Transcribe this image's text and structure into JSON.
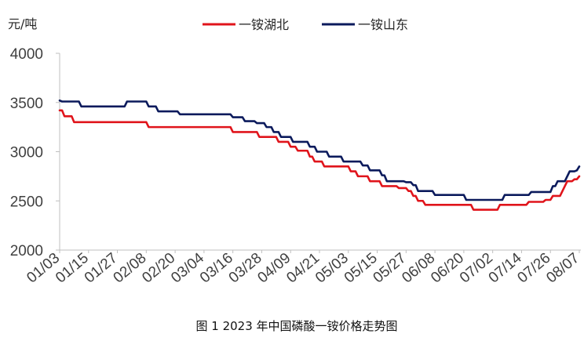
{
  "chart_data": {
    "type": "line",
    "title": "图 1 2023 年中国磷酸一铵价格走势图",
    "ylabel": "元/吨",
    "ylim": [
      2000,
      4000
    ],
    "yticks": [
      2000,
      2500,
      3000,
      3500,
      4000
    ],
    "xlim": [
      "01/03",
      "08/07"
    ],
    "xticks": [
      "01/03",
      "01/15",
      "01/27",
      "02/08",
      "02/20",
      "03/04",
      "03/16",
      "03/28",
      "04/09",
      "04/21",
      "05/03",
      "05/15",
      "05/27",
      "06/08",
      "06/20",
      "07/02",
      "07/14",
      "07/26",
      "08/07"
    ],
    "grid": false,
    "legend_position": "top",
    "series": [
      {
        "name": "一铵湖北",
        "color": "#e0141b",
        "points": [
          [
            "01/03",
            3420
          ],
          [
            "01/05",
            3360
          ],
          [
            "01/09",
            3300
          ],
          [
            "02/09",
            3250
          ],
          [
            "03/16",
            3200
          ],
          [
            "03/27",
            3150
          ],
          [
            "04/04",
            3100
          ],
          [
            "04/09",
            3050
          ],
          [
            "04/12",
            3010
          ],
          [
            "04/17",
            2950
          ],
          [
            "04/19",
            2900
          ],
          [
            "04/23",
            2850
          ],
          [
            "05/04",
            2800
          ],
          [
            "05/07",
            2750
          ],
          [
            "05/12",
            2700
          ],
          [
            "05/17",
            2650
          ],
          [
            "05/24",
            2630
          ],
          [
            "05/28",
            2600
          ],
          [
            "05/30",
            2550
          ],
          [
            "06/01",
            2500
          ],
          [
            "06/04",
            2460
          ],
          [
            "06/24",
            2410
          ],
          [
            "07/05",
            2460
          ],
          [
            "07/17",
            2490
          ],
          [
            "07/24",
            2510
          ],
          [
            "07/27",
            2550
          ],
          [
            "07/31",
            2600
          ],
          [
            "08/01",
            2650
          ],
          [
            "08/02",
            2700
          ],
          [
            "08/05",
            2720
          ],
          [
            "08/07",
            2750
          ]
        ]
      },
      {
        "name": "一铵山东",
        "color": "#0b1a5c",
        "points": [
          [
            "01/03",
            3520
          ],
          [
            "01/04",
            3510
          ],
          [
            "01/12",
            3460
          ],
          [
            "01/31",
            3510
          ],
          [
            "02/09",
            3460
          ],
          [
            "02/13",
            3410
          ],
          [
            "02/22",
            3380
          ],
          [
            "03/16",
            3350
          ],
          [
            "03/21",
            3310
          ],
          [
            "03/26",
            3290
          ],
          [
            "03/30",
            3250
          ],
          [
            "04/02",
            3200
          ],
          [
            "04/05",
            3150
          ],
          [
            "04/10",
            3100
          ],
          [
            "04/17",
            3050
          ],
          [
            "04/20",
            3000
          ],
          [
            "04/25",
            2950
          ],
          [
            "05/01",
            2900
          ],
          [
            "05/09",
            2860
          ],
          [
            "05/12",
            2810
          ],
          [
            "05/17",
            2760
          ],
          [
            "05/19",
            2700
          ],
          [
            "05/27",
            2690
          ],
          [
            "05/30",
            2660
          ],
          [
            "06/01",
            2600
          ],
          [
            "06/08",
            2560
          ],
          [
            "06/21",
            2510
          ],
          [
            "07/07",
            2560
          ],
          [
            "07/18",
            2590
          ],
          [
            "07/27",
            2650
          ],
          [
            "07/29",
            2700
          ],
          [
            "08/02",
            2750
          ],
          [
            "08/03",
            2800
          ],
          [
            "08/06",
            2810
          ],
          [
            "08/07",
            2850
          ]
        ]
      }
    ]
  }
}
